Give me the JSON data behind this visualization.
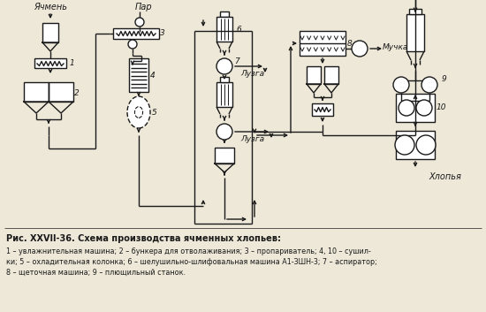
{
  "title": "Рис. XXVII-36. Схема производства ячменных хлопьев:",
  "caption_lines": [
    "1 – увлажнительная машина; 2 – бункера для отволаживания; 3 – пропариватель; 4, 10 – сушил-",
    "ки; 5 – охладительная колонка; 6 – шелушильно-шлифовальная машина А1-ЗШН-3; 7 – аспиратор;",
    "8 – щеточная машина; 9 – плющильный станок."
  ],
  "label_yachmen": "Ячмень",
  "label_par": "Пар",
  "label_luzga1": "Лузга",
  "label_luzga2": "Лузга",
  "label_muchka": "Мучка",
  "label_khlopya": "Хлопья",
  "bg_color": "#ede8d8",
  "line_color": "#1a1a1a",
  "text_color": "#1a1a1a"
}
